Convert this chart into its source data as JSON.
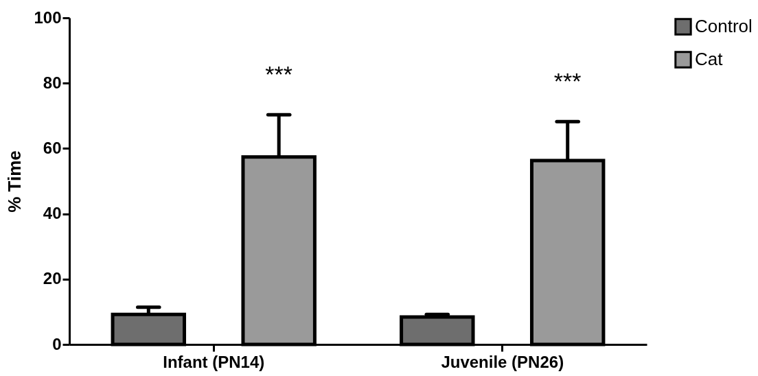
{
  "chart_data": {
    "type": "bar",
    "ylabel": "% Time",
    "categories": [
      "Infant (PN14)",
      "Juvenile (PN26)"
    ],
    "series": [
      {
        "name": "Control",
        "color": "#6e6e6e",
        "values": [
          9.2,
          8.4
        ],
        "errors": [
          [
            9.2,
            11.4
          ],
          [
            8.4,
            9.2
          ]
        ]
      },
      {
        "name": "Cat",
        "color": "#9a9a9a",
        "values": [
          57.4,
          56.3
        ],
        "errors": [
          [
            57.4,
            70.3
          ],
          [
            56.3,
            68.2
          ]
        ]
      }
    ],
    "ylim": [
      0,
      100
    ],
    "yticks": [
      0,
      20,
      40,
      60,
      80,
      100
    ],
    "annotations": [
      "***",
      "***"
    ],
    "legend": "top right",
    "grid": false
  }
}
